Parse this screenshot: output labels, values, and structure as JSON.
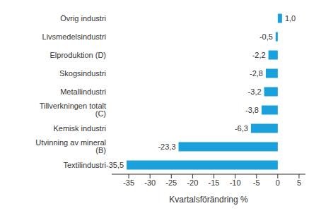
{
  "chart_data": {
    "type": "bar",
    "orientation": "horizontal",
    "x_label": "Kvartalsförändring %",
    "categories": [
      "Övrig industri",
      "Livsmedelsindustri",
      "Elproduktion (D)",
      "Skogsindustri",
      "Metallindustri",
      "Tillverkningen totalt (C)",
      "Kemisk industri",
      "Utvinning av mineral (B)",
      "Textilindustri"
    ],
    "values": [
      1.0,
      -0.5,
      -2.2,
      -2.8,
      -3.2,
      -3.8,
      -6.3,
      -23.3,
      -35.5
    ],
    "value_labels": [
      "1,0",
      "-0,5",
      "-2,2",
      "-2,8",
      "-3,2",
      "-3,8",
      "-6,3",
      "-23,3",
      "-35,5"
    ],
    "color": "#1aa0db",
    "xlim": [
      -39,
      6.5
    ],
    "xticks": [
      -35,
      -30,
      -25,
      -20,
      -15,
      -10,
      -5,
      0,
      5
    ],
    "grid": false,
    "data_labels": true
  }
}
